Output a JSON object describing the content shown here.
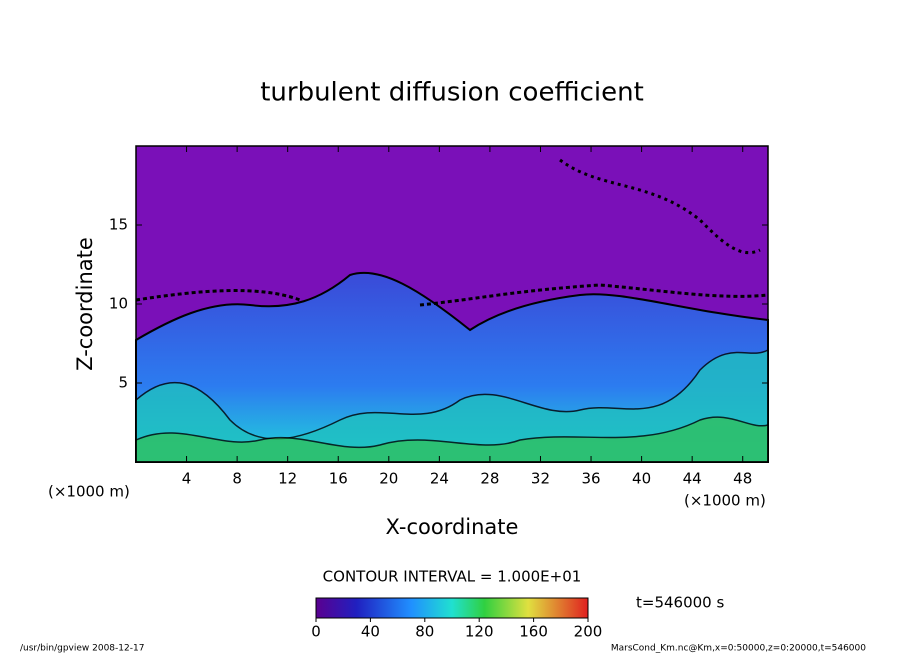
{
  "chart_data": {
    "type": "contour",
    "title": "turbulent diffusion coefficient",
    "x_label": "X-coordinate",
    "y_label": "Z-coordinate",
    "x_unit_left": "(×1000 m)",
    "x_unit_right": "(×1000 m)",
    "xlim": [
      0,
      50
    ],
    "xticks": [
      4,
      8,
      12,
      16,
      20,
      24,
      28,
      32,
      36,
      40,
      44,
      48
    ],
    "ylim": [
      0,
      20
    ],
    "yticks": [
      5,
      10,
      15
    ],
    "contour_interval": "CONTOUR INTERVAL = 1.000E+01",
    "colorbar_lim": [
      0,
      200
    ],
    "colorbar_ticks": [
      0,
      40,
      80,
      120,
      160,
      200
    ],
    "time_label": "t=546000 s",
    "footer_left": "/usr/bin/gpview  2008-12-17",
    "footer_right": "MarsCond_Km.nc@Km,x=0:50000,z=0:20000,t=546000"
  }
}
